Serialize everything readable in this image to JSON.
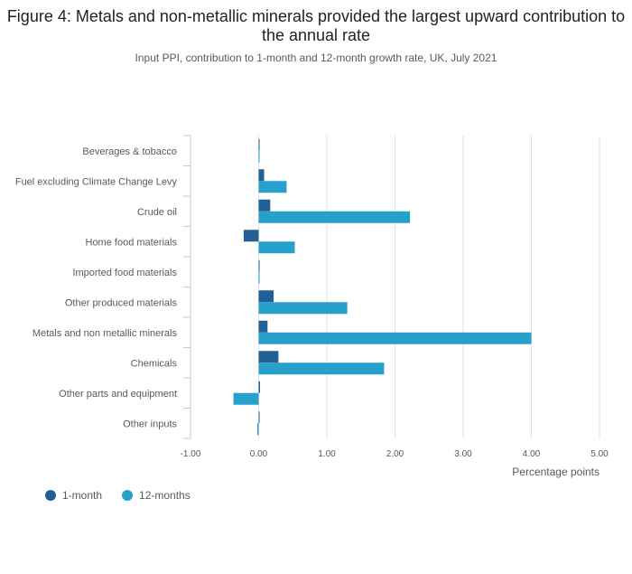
{
  "title": "Figure 4: Metals and non-metallic minerals provided the largest upward contribution to the annual rate",
  "subtitle": "Input PPI, contribution to 1-month and 12-month growth rate, UK, July 2021",
  "colors": {
    "one_month": "#206095",
    "twelve_months": "#27a0cc",
    "grid": "#e2e2e3",
    "axis": "#b0b0b0"
  },
  "chart_data": {
    "type": "bar",
    "orientation": "horizontal",
    "title": "Figure 4: Metals and non-metallic minerals provided the largest upward contribution to the annual rate",
    "subtitle": "Input PPI, contribution to 1-month and 12-month growth rate, UK, July 2021",
    "xlabel": "Percentage points",
    "ylabel": "",
    "xlim": [
      -1.0,
      5.0
    ],
    "xticks": [
      -1.0,
      0.0,
      1.0,
      2.0,
      3.0,
      4.0,
      5.0
    ],
    "xtick_labels": [
      "-1.00",
      "0.00",
      "1.00",
      "2.00",
      "3.00",
      "4.00",
      "5.00"
    ],
    "grid": true,
    "legend_position": "bottom-left",
    "categories": [
      "Beverages & tobacco",
      "Fuel excluding Climate Change Levy",
      "Crude oil",
      "Home food materials",
      "Imported food materials",
      "Other produced materials",
      "Metals and non metallic minerals",
      "Chemicals",
      "Other parts and equipment",
      "Other inputs"
    ],
    "series": [
      {
        "name": "1-month",
        "values": [
          0.0,
          0.08,
          0.17,
          -0.22,
          0.0,
          0.22,
          0.13,
          0.29,
          0.02,
          0.0
        ]
      },
      {
        "name": "12-months",
        "values": [
          0.0,
          0.41,
          2.22,
          0.53,
          0.0,
          1.3,
          4.0,
          1.84,
          -0.37,
          -0.02
        ]
      }
    ]
  }
}
